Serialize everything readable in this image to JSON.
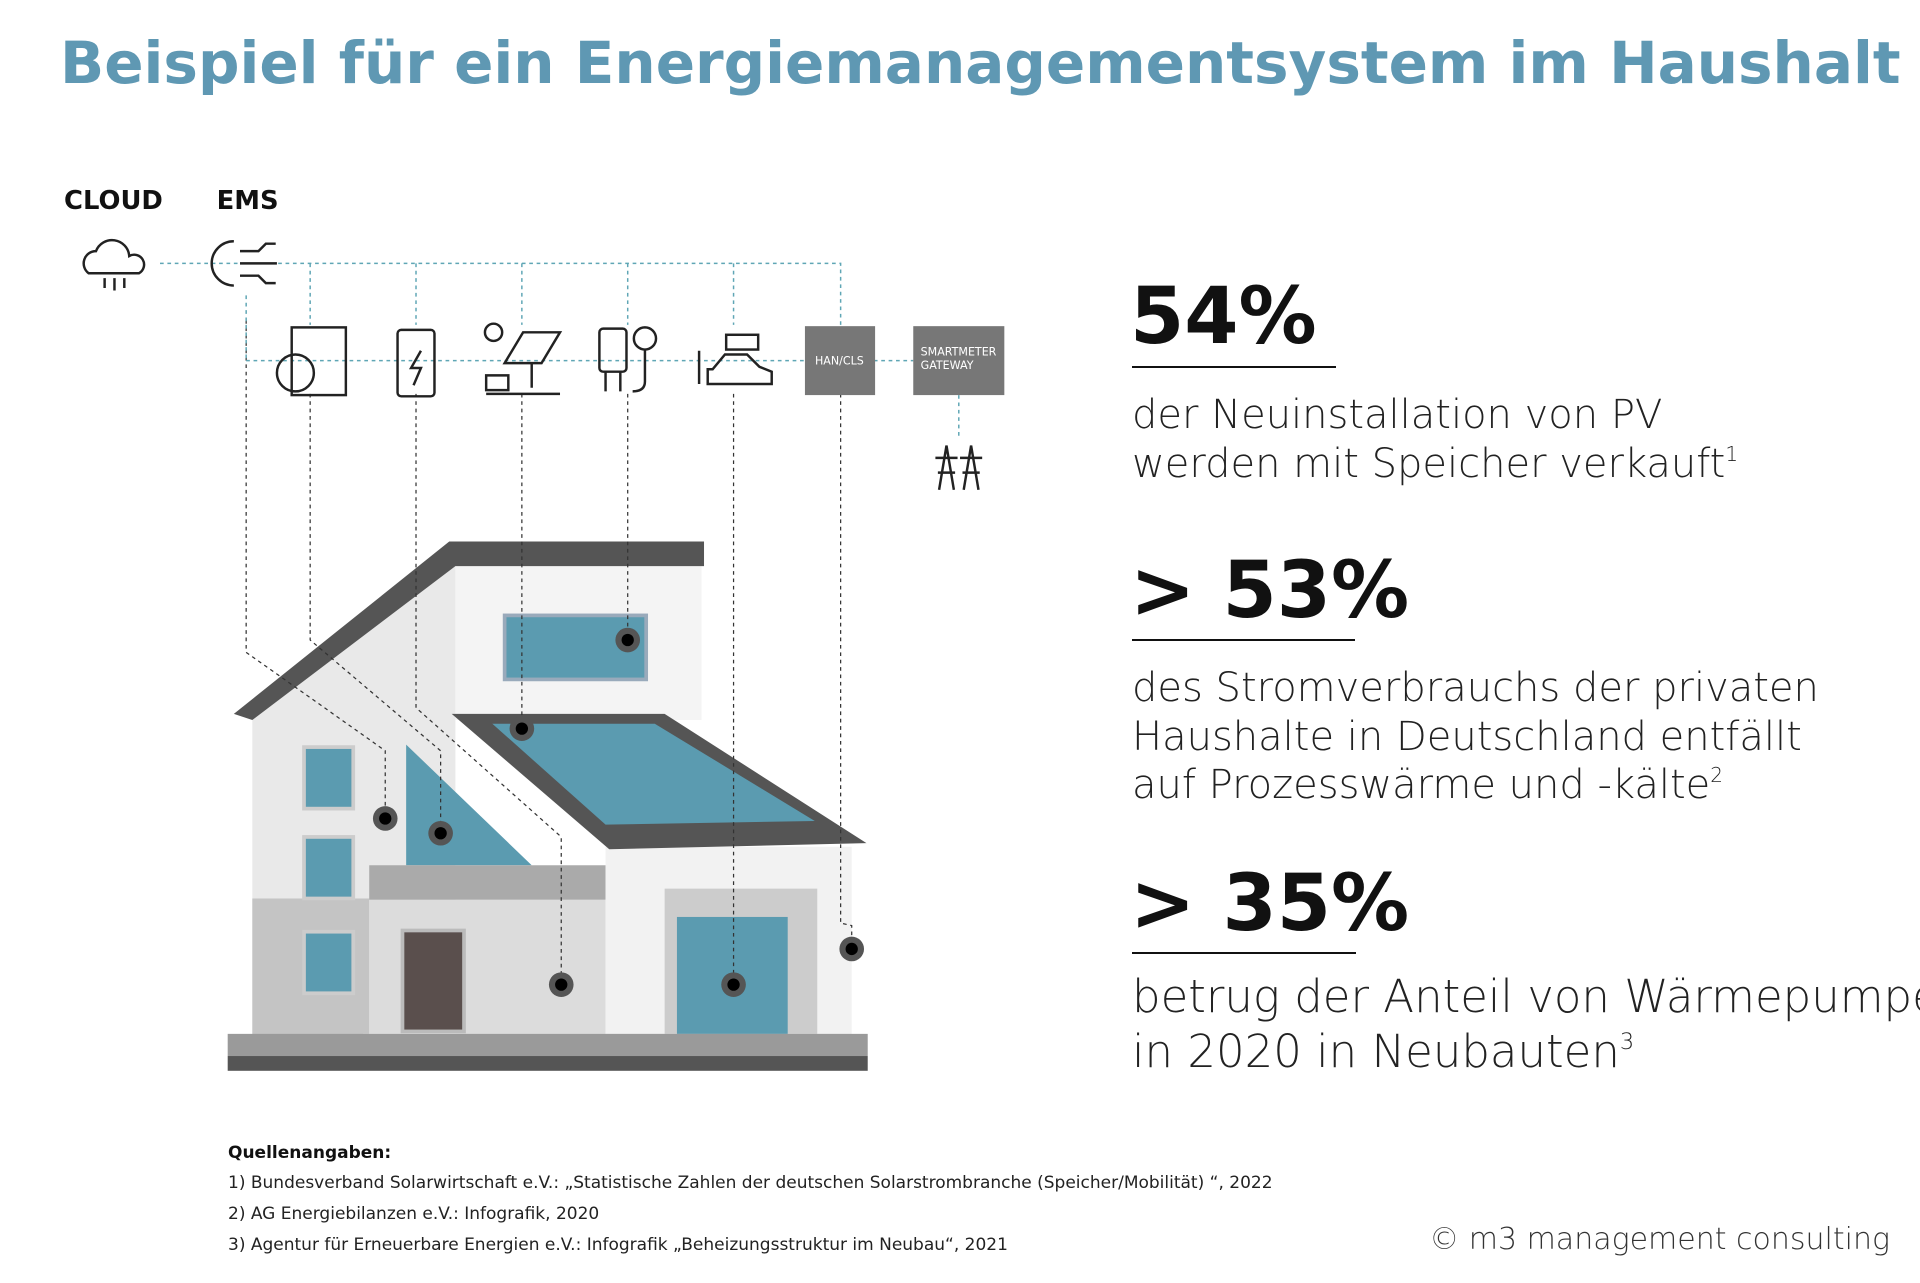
{
  "title": "Beispiel für ein Energiemanagementsystem im Haushalt",
  "diagram": {
    "cloud_label": "CLOUD",
    "ems_label": "EMS",
    "han_label": "HAN/CLS",
    "gateway_label": [
      "SMARTMETER",
      "GATEWAY"
    ]
  },
  "stats": [
    {
      "value": "54%",
      "lines": [
        "der Neuinstallation von PV",
        "werden mit Speicher verkauft"
      ],
      "note": "1"
    },
    {
      "value": "> 53%",
      "lines": [
        "des Stromverbrauchs der privaten",
        "Haushalte in Deutschland entfällt",
        "auf Prozesswärme und -kälte"
      ],
      "note": "2"
    },
    {
      "value": "> 35%",
      "lines": [
        "betrug der Anteil von Wärmepumpen",
        "in 2020 in Neubauten"
      ],
      "note": "3"
    }
  ],
  "sources": {
    "heading": "Quellenangaben:",
    "items": [
      "1) Bundesverband Solarwirtschaft e.V.: „Statistische Zahlen der deutschen Solarstrombranche (Speicher/Mobilität) “, 2022",
      "2) AG Energiebilanzen e.V.: Infografik, 2020",
      "3) Agentur für Erneuerbare Energien e.V.: Infografik „Beheizungsstruktur im Neubau“, 2021"
    ]
  },
  "copyright": "© m3 management consulting"
}
